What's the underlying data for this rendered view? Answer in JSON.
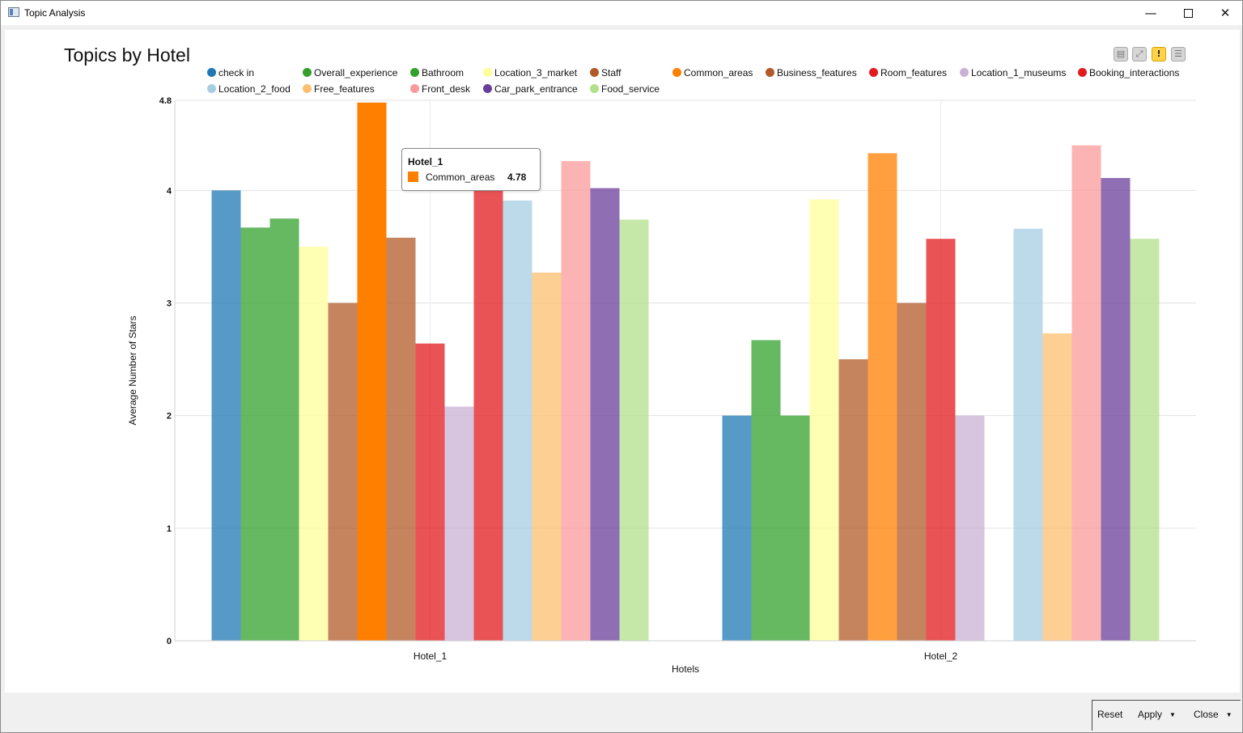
{
  "window": {
    "title": "Topic Analysis"
  },
  "toolbar": {
    "icons": [
      "zoom-icon",
      "fit-icon",
      "alert-icon",
      "menu-icon"
    ],
    "alert_glyph": "!"
  },
  "footer": {
    "reset_label": "Reset",
    "apply_label": "Apply",
    "close_label": "Close"
  },
  "tooltip": {
    "title": "Hotel_1",
    "series": "Common_areas",
    "value": "4.78",
    "color": "#ff7f00"
  },
  "chart_data": {
    "type": "bar",
    "title": "Topics by Hotel",
    "xlabel": "Hotels",
    "ylabel": "Average Number of Stars",
    "categories": [
      "Hotel_1",
      "Hotel_2"
    ],
    "ylim": [
      0,
      4.8
    ],
    "yticks": [
      "0",
      "1",
      "2",
      "3",
      "4",
      "4.8"
    ],
    "grid": true,
    "legend_position": "top",
    "series": [
      {
        "name": "check in",
        "color": "#1f78b4",
        "values": [
          4.0,
          2.0
        ]
      },
      {
        "name": "Overall_experience",
        "color": "#33a02c",
        "values": [
          3.67,
          2.67
        ]
      },
      {
        "name": "Bathroom",
        "color": "#33a02c",
        "values": [
          3.75,
          2.0
        ]
      },
      {
        "name": "Location_3_market",
        "color": "#ffff99",
        "values": [
          3.5,
          3.92
        ]
      },
      {
        "name": "Staff",
        "color": "#b15928",
        "values": [
          3.0,
          2.5
        ]
      },
      {
        "name": "Common_areas",
        "color": "#ff7f00",
        "values": [
          4.78,
          4.33
        ]
      },
      {
        "name": "Business_features",
        "color": "#b15928",
        "values": [
          3.58,
          3.0
        ]
      },
      {
        "name": "Room_features",
        "color": "#e31a1c",
        "values": [
          2.64,
          3.57
        ]
      },
      {
        "name": "Location_1_museums",
        "color": "#cab2d6",
        "values": [
          2.08,
          2.0
        ]
      },
      {
        "name": "Booking_interactions",
        "color": "#e31a1c",
        "values": [
          4.0,
          null
        ]
      },
      {
        "name": "Location_2_food",
        "color": "#a6cee3",
        "values": [
          3.91,
          3.66
        ]
      },
      {
        "name": "Free_features",
        "color": "#fdbf6f",
        "values": [
          3.27,
          2.73
        ]
      },
      {
        "name": "Front_desk",
        "color": "#fb9a99",
        "values": [
          4.26,
          4.4
        ]
      },
      {
        "name": "Car_park_entrance",
        "color": "#6a3d9a",
        "values": [
          4.02,
          4.11
        ]
      },
      {
        "name": "Food_service",
        "color": "#b2df8a",
        "values": [
          3.74,
          3.57
        ]
      }
    ]
  }
}
